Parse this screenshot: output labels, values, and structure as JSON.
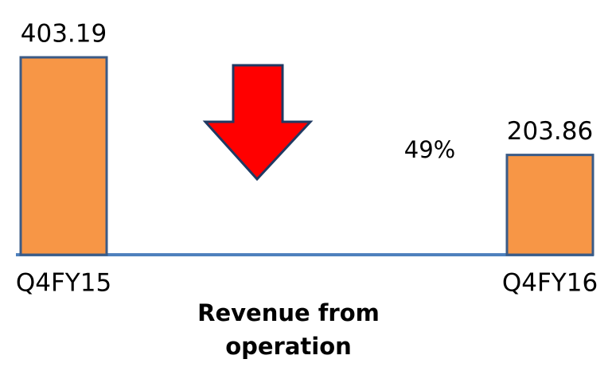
{
  "chart_data": {
    "type": "bar",
    "categories": [
      "Q4FY15",
      "Q4FY16"
    ],
    "values": [
      403.19,
      203.86
    ],
    "color": "#f79646",
    "x_label": "Revenue from operation",
    "annotation": "49%"
  }
}
